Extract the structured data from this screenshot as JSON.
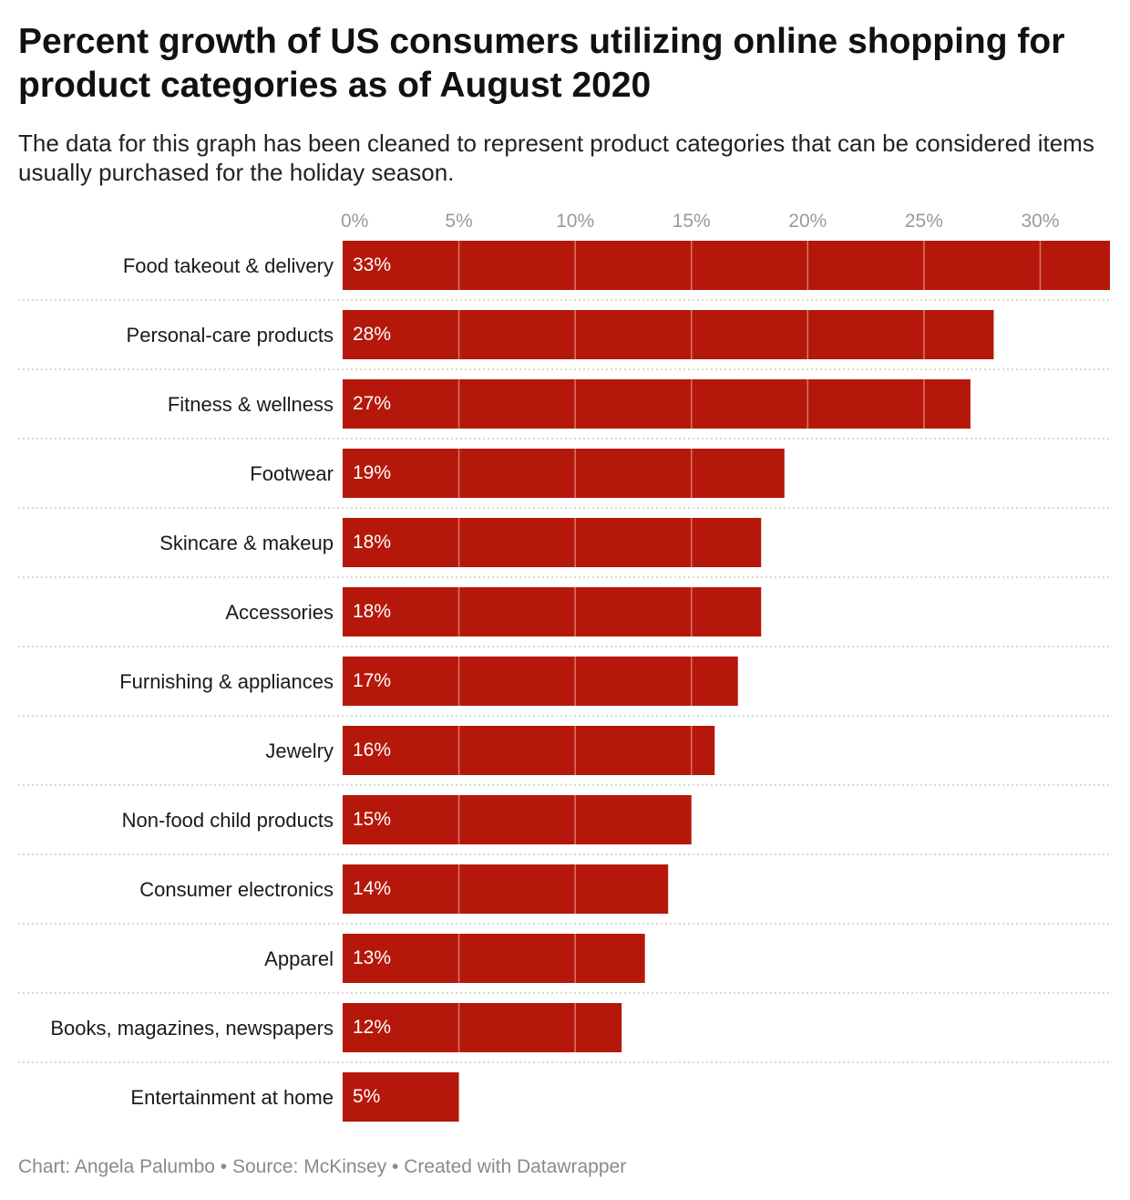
{
  "title": "Percent growth of US consumers utilizing online shopping for product categories as of August 2020",
  "subtitle": "The data for this graph has been cleaned to represent product categories that can be considered items usually purchased for the holiday season.",
  "footer": {
    "text": "Chart: Angela Palumbo • Source: McKinsey • Created with Datawrapper"
  },
  "colors": {
    "bar": "#b5180b",
    "gridline_over_bar": "#d9746c",
    "separator": "#cccccc",
    "tick_text": "#9a9a9a"
  },
  "chart_data": {
    "type": "bar",
    "orientation": "horizontal",
    "categories": [
      "Food takeout & delivery",
      "Personal-care products",
      "Fitness & wellness",
      "Footwear",
      "Skincare & makeup",
      "Accessories",
      "Furnishing & appliances",
      "Jewelry",
      "Non-food child products",
      "Consumer electronics",
      "Apparel",
      "Books, magazines, newspapers",
      "Entertainment at home"
    ],
    "values": [
      33,
      28,
      27,
      19,
      18,
      18,
      17,
      16,
      15,
      14,
      13,
      12,
      5
    ],
    "value_labels": [
      "33%",
      "28%",
      "27%",
      "19%",
      "18%",
      "18%",
      "17%",
      "16%",
      "15%",
      "14%",
      "13%",
      "12%",
      "5%"
    ],
    "x_ticks": [
      0,
      5,
      10,
      15,
      20,
      25,
      30
    ],
    "x_tick_labels": [
      "0%",
      "5%",
      "10%",
      "15%",
      "20%",
      "25%",
      "30%"
    ],
    "xlim": [
      0,
      33
    ],
    "grid": true,
    "legend": "none"
  }
}
